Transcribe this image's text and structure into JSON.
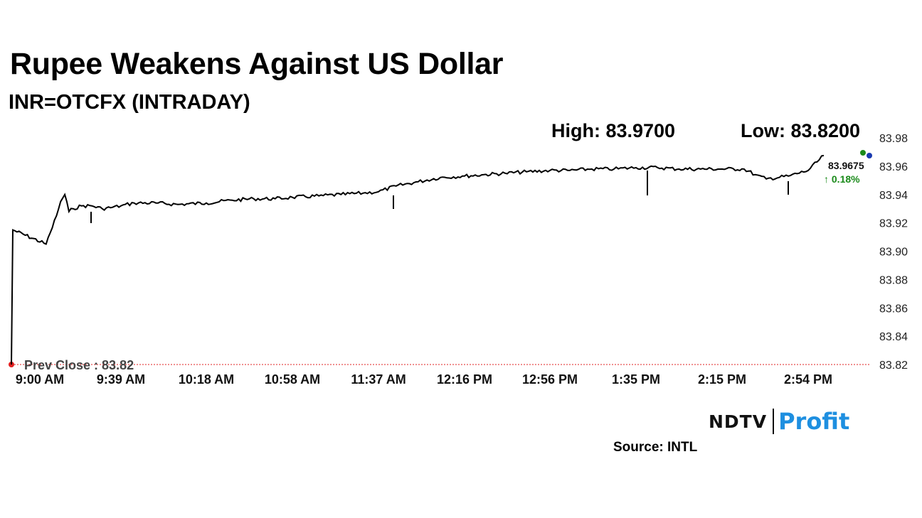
{
  "title": "Rupee Weakens Against US Dollar",
  "subtitle": "INR=OTCFX (INTRADAY)",
  "stats": {
    "high": "High: 83.9700",
    "low": "Low: 83.8200"
  },
  "source": "Source: INTL",
  "brand": {
    "left": "NDTV",
    "right": "Profit"
  },
  "colors": {
    "line": "#000000",
    "prev_close": "#e02020",
    "change_up": "#1a8a1a",
    "high_dot": "#1a8a1a",
    "low_dot": "#1a3ab0",
    "brand_accent": "#1e8fe0"
  },
  "chart_data": {
    "type": "line",
    "x_ticks": [
      "9:00 AM",
      "9:39 AM",
      "10:18 AM",
      "10:58 AM",
      "11:37 AM",
      "12:16 PM",
      "12:56 PM",
      "1:35 PM",
      "2:15 PM",
      "2:54 PM"
    ],
    "y_ticks": [
      "83.98",
      "83.96",
      "83.94",
      "83.92",
      "83.90",
      "83.88",
      "83.86",
      "83.84",
      "83.82"
    ],
    "ylim": [
      83.82,
      83.98
    ],
    "y_axis": "right",
    "grid": false,
    "prev_close": {
      "label": "Prev Close : 83.82",
      "value": 83.82
    },
    "last_value": "83.9675",
    "change": "↑ 0.18%",
    "series": [
      {
        "x": [
          "9:00 AM",
          "9:01 AM",
          "9:03 AM",
          "9:05 AM",
          "9:08 AM",
          "9:10 AM",
          "9:12 AM",
          "9:14 AM",
          "9:16 AM",
          "9:20 AM",
          "9:25 AM",
          "9:30 AM",
          "9:35 AM",
          "9:39 AM",
          "9:45 AM",
          "9:55 AM",
          "10:05 AM",
          "10:18 AM",
          "10:30 AM",
          "10:40 AM",
          "10:50 AM",
          "10:58 AM",
          "11:10 AM",
          "11:20 AM",
          "11:30 AM",
          "11:37 AM",
          "11:45 AM",
          "11:55 AM",
          "12:05 PM",
          "12:16 PM",
          "12:25 PM",
          "12:35 PM",
          "12:45 PM",
          "12:56 PM",
          "1:05 PM",
          "1:15 PM",
          "1:25 PM",
          "1:35 PM",
          "1:45 PM",
          "1:55 PM",
          "2:05 PM",
          "2:15 PM",
          "2:25 PM",
          "2:30 PM",
          "2:35 PM",
          "2:45 PM",
          "2:54 PM",
          "3:00 PM"
        ],
        "values": [
          83.82,
          83.915,
          83.905,
          83.913,
          83.925,
          83.935,
          83.94,
          83.928,
          83.93,
          83.932,
          83.932,
          83.93,
          83.931,
          83.932,
          83.934,
          83.934,
          83.933,
          83.934,
          83.936,
          83.937,
          83.937,
          83.938,
          83.939,
          83.94,
          83.941,
          83.942,
          83.946,
          83.949,
          83.952,
          83.953,
          83.954,
          83.955,
          83.956,
          83.957,
          83.957,
          83.958,
          83.958,
          83.959,
          83.959,
          83.958,
          83.958,
          83.958,
          83.958,
          83.954,
          83.951,
          83.953,
          83.957,
          83.9675
        ]
      }
    ]
  }
}
